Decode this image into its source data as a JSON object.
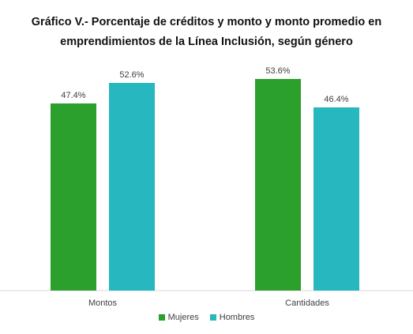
{
  "title_line1": "Gráfico V.- Porcentaje de créditos y monto y monto promedio en",
  "title_line2": "emprendimientos de la Línea Inclusión, según género",
  "chart_data": {
    "type": "bar",
    "categories": [
      "Montos",
      "Cantidades"
    ],
    "series": [
      {
        "name": "Mujeres",
        "values": [
          47.4,
          53.6
        ],
        "labels": [
          "47.4%",
          "53.6%"
        ],
        "color": "#2ca02c"
      },
      {
        "name": "Hombres",
        "values": [
          52.6,
          46.4
        ],
        "labels": [
          "52.6%",
          "46.4%"
        ],
        "color": "#26b7bf"
      }
    ],
    "ylim": [
      0,
      60
    ],
    "grid": false,
    "legend": "bottom"
  }
}
